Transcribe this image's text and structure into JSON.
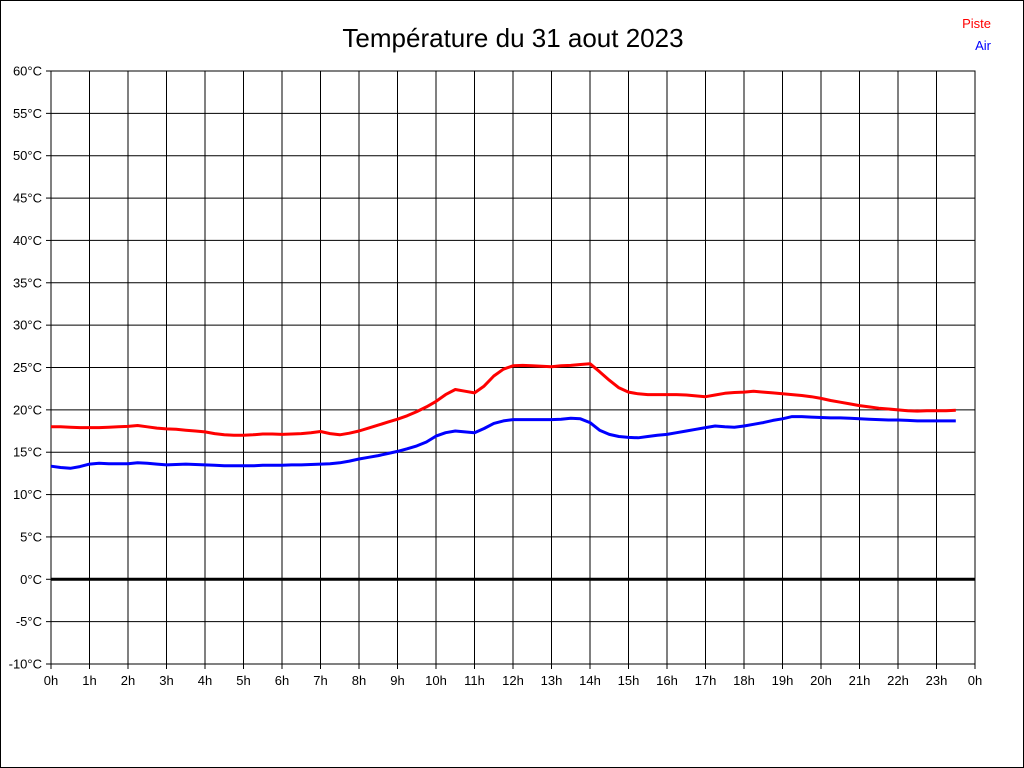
{
  "chart_data": {
    "type": "line",
    "title": "Température du 31 aout 2023",
    "xlabel": "",
    "ylabel": "",
    "xlim": [
      0,
      24
    ],
    "ylim": [
      -10,
      60
    ],
    "grid": true,
    "grid_color": "#000000",
    "background_color": "#ffffff",
    "zero_line": {
      "value": 0,
      "color": "#000000",
      "width": 3
    },
    "x_ticks": {
      "values": [
        0,
        1,
        2,
        3,
        4,
        5,
        6,
        7,
        8,
        9,
        10,
        11,
        12,
        13,
        14,
        15,
        16,
        17,
        18,
        19,
        20,
        21,
        22,
        23,
        24
      ],
      "labels": [
        "0h",
        "1h",
        "2h",
        "3h",
        "4h",
        "5h",
        "6h",
        "7h",
        "8h",
        "9h",
        "10h",
        "11h",
        "12h",
        "13h",
        "14h",
        "15h",
        "16h",
        "17h",
        "18h",
        "19h",
        "20h",
        "21h",
        "22h",
        "23h",
        "0h"
      ]
    },
    "y_ticks": {
      "values": [
        60,
        55,
        50,
        45,
        40,
        35,
        30,
        25,
        20,
        15,
        10,
        5,
        0,
        -5,
        -10
      ],
      "labels": [
        "60°C",
        "55°C",
        "50°C",
        "45°C",
        "40°C",
        "35°C",
        "30°C",
        "25°C",
        "20°C",
        "15°C",
        "10°C",
        "5°C",
        "0°C",
        "-5°C",
        "-10°C"
      ]
    },
    "legend": [
      {
        "label": "Piste",
        "color": "#ff0000"
      },
      {
        "label": "Air",
        "color": "#0000ff"
      }
    ],
    "legend_position": "top-right",
    "series": [
      {
        "name": "Piste",
        "color": "#ff0000",
        "width": 3,
        "points": [
          [
            0,
            18
          ],
          [
            0.25,
            18
          ],
          [
            0.5,
            17.95
          ],
          [
            0.75,
            17.9
          ],
          [
            1,
            17.9
          ],
          [
            1.25,
            17.9
          ],
          [
            1.5,
            17.95
          ],
          [
            1.75,
            18
          ],
          [
            2,
            18.05
          ],
          [
            2.25,
            18.15
          ],
          [
            2.5,
            18
          ],
          [
            2.75,
            17.85
          ],
          [
            3,
            17.75
          ],
          [
            3.25,
            17.7
          ],
          [
            3.5,
            17.6
          ],
          [
            3.75,
            17.5
          ],
          [
            4,
            17.4
          ],
          [
            4.25,
            17.2
          ],
          [
            4.5,
            17.05
          ],
          [
            4.75,
            17
          ],
          [
            5,
            17
          ],
          [
            5.25,
            17.05
          ],
          [
            5.5,
            17.15
          ],
          [
            5.75,
            17.15
          ],
          [
            6,
            17.1
          ],
          [
            6.25,
            17.15
          ],
          [
            6.5,
            17.2
          ],
          [
            6.75,
            17.3
          ],
          [
            7,
            17.45
          ],
          [
            7.25,
            17.2
          ],
          [
            7.5,
            17.05
          ],
          [
            7.75,
            17.25
          ],
          [
            8,
            17.5
          ],
          [
            8.25,
            17.85
          ],
          [
            8.5,
            18.2
          ],
          [
            8.75,
            18.55
          ],
          [
            9,
            18.9
          ],
          [
            9.25,
            19.3
          ],
          [
            9.5,
            19.8
          ],
          [
            9.75,
            20.35
          ],
          [
            10,
            21
          ],
          [
            10.25,
            21.8
          ],
          [
            10.5,
            22.4
          ],
          [
            10.75,
            22.2
          ],
          [
            11,
            22
          ],
          [
            11.25,
            22.8
          ],
          [
            11.5,
            24
          ],
          [
            11.75,
            24.8
          ],
          [
            12,
            25.2
          ],
          [
            12.25,
            25.25
          ],
          [
            12.5,
            25.2
          ],
          [
            12.75,
            25.15
          ],
          [
            13,
            25.1
          ],
          [
            13.25,
            25.2
          ],
          [
            13.5,
            25.25
          ],
          [
            13.75,
            25.35
          ],
          [
            14,
            25.45
          ],
          [
            14.25,
            24.5
          ],
          [
            14.5,
            23.5
          ],
          [
            14.75,
            22.6
          ],
          [
            15,
            22.1
          ],
          [
            15.25,
            21.9
          ],
          [
            15.5,
            21.8
          ],
          [
            15.75,
            21.8
          ],
          [
            16,
            21.8
          ],
          [
            16.25,
            21.8
          ],
          [
            16.5,
            21.75
          ],
          [
            16.75,
            21.65
          ],
          [
            17,
            21.55
          ],
          [
            17.25,
            21.75
          ],
          [
            17.5,
            21.95
          ],
          [
            17.75,
            22.05
          ],
          [
            18,
            22.1
          ],
          [
            18.25,
            22.2
          ],
          [
            18.5,
            22.1
          ],
          [
            18.75,
            22
          ],
          [
            19,
            21.9
          ],
          [
            19.25,
            21.8
          ],
          [
            19.5,
            21.7
          ],
          [
            19.75,
            21.55
          ],
          [
            20,
            21.35
          ],
          [
            20.25,
            21.1
          ],
          [
            20.5,
            20.9
          ],
          [
            20.75,
            20.7
          ],
          [
            21,
            20.5
          ],
          [
            21.25,
            20.35
          ],
          [
            21.5,
            20.2
          ],
          [
            21.75,
            20.1
          ],
          [
            22,
            20
          ],
          [
            22.25,
            19.9
          ],
          [
            22.5,
            19.85
          ],
          [
            22.75,
            19.9
          ],
          [
            23,
            19.9
          ],
          [
            23.25,
            19.9
          ],
          [
            23.5,
            19.95
          ]
        ]
      },
      {
        "name": "Air",
        "color": "#0000ff",
        "width": 3,
        "points": [
          [
            0,
            13.35
          ],
          [
            0.25,
            13.2
          ],
          [
            0.5,
            13.1
          ],
          [
            0.75,
            13.3
          ],
          [
            1,
            13.6
          ],
          [
            1.25,
            13.7
          ],
          [
            1.5,
            13.65
          ],
          [
            1.75,
            13.65
          ],
          [
            2,
            13.65
          ],
          [
            2.25,
            13.75
          ],
          [
            2.5,
            13.7
          ],
          [
            2.75,
            13.6
          ],
          [
            3,
            13.5
          ],
          [
            3.25,
            13.55
          ],
          [
            3.5,
            13.6
          ],
          [
            3.75,
            13.55
          ],
          [
            4,
            13.5
          ],
          [
            4.25,
            13.45
          ],
          [
            4.5,
            13.4
          ],
          [
            4.75,
            13.4
          ],
          [
            5,
            13.4
          ],
          [
            5.25,
            13.4
          ],
          [
            5.5,
            13.45
          ],
          [
            5.75,
            13.45
          ],
          [
            6,
            13.45
          ],
          [
            6.25,
            13.5
          ],
          [
            6.5,
            13.5
          ],
          [
            6.75,
            13.55
          ],
          [
            7,
            13.6
          ],
          [
            7.25,
            13.65
          ],
          [
            7.5,
            13.75
          ],
          [
            7.75,
            13.95
          ],
          [
            8,
            14.2
          ],
          [
            8.25,
            14.4
          ],
          [
            8.5,
            14.6
          ],
          [
            8.75,
            14.85
          ],
          [
            9,
            15.1
          ],
          [
            9.25,
            15.4
          ],
          [
            9.5,
            15.75
          ],
          [
            9.75,
            16.2
          ],
          [
            10,
            16.9
          ],
          [
            10.25,
            17.3
          ],
          [
            10.5,
            17.5
          ],
          [
            10.75,
            17.4
          ],
          [
            11,
            17.3
          ],
          [
            11.25,
            17.8
          ],
          [
            11.5,
            18.4
          ],
          [
            11.75,
            18.7
          ],
          [
            12,
            18.85
          ],
          [
            12.25,
            18.85
          ],
          [
            12.5,
            18.85
          ],
          [
            12.75,
            18.85
          ],
          [
            13,
            18.85
          ],
          [
            13.25,
            18.9
          ],
          [
            13.5,
            19
          ],
          [
            13.75,
            18.95
          ],
          [
            14,
            18.5
          ],
          [
            14.25,
            17.6
          ],
          [
            14.5,
            17.1
          ],
          [
            14.75,
            16.85
          ],
          [
            15,
            16.75
          ],
          [
            15.25,
            16.7
          ],
          [
            15.5,
            16.85
          ],
          [
            15.75,
            17
          ],
          [
            16,
            17.1
          ],
          [
            16.25,
            17.3
          ],
          [
            16.5,
            17.5
          ],
          [
            16.75,
            17.7
          ],
          [
            17,
            17.9
          ],
          [
            17.25,
            18.1
          ],
          [
            17.5,
            18
          ],
          [
            17.75,
            17.95
          ],
          [
            18,
            18.1
          ],
          [
            18.25,
            18.3
          ],
          [
            18.5,
            18.5
          ],
          [
            18.75,
            18.75
          ],
          [
            19,
            18.95
          ],
          [
            19.25,
            19.2
          ],
          [
            19.5,
            19.2
          ],
          [
            19.75,
            19.15
          ],
          [
            20,
            19.1
          ],
          [
            20.25,
            19.05
          ],
          [
            20.5,
            19.05
          ],
          [
            20.75,
            19
          ],
          [
            21,
            18.95
          ],
          [
            21.25,
            18.9
          ],
          [
            21.5,
            18.85
          ],
          [
            21.75,
            18.8
          ],
          [
            22,
            18.8
          ],
          [
            22.25,
            18.75
          ],
          [
            22.5,
            18.7
          ],
          [
            22.75,
            18.7
          ],
          [
            23,
            18.7
          ],
          [
            23.25,
            18.7
          ],
          [
            23.5,
            18.7
          ]
        ]
      }
    ]
  }
}
